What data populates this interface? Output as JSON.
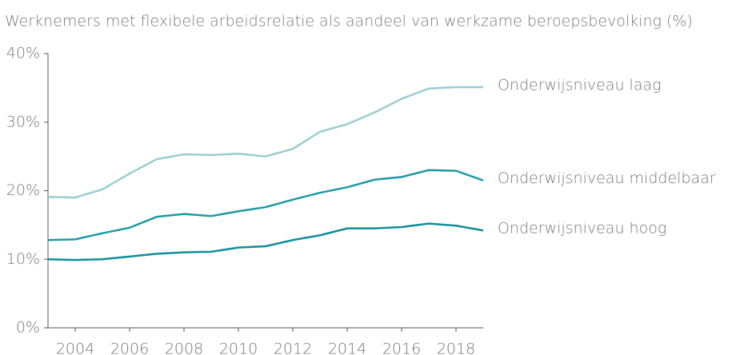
{
  "chart_data": {
    "type": "line",
    "title": "Werknemers met flexibele arbeidsrelatie als aandeel van werkzame beroepsbevolking (%)",
    "x": [
      2003,
      2004,
      2005,
      2006,
      2007,
      2008,
      2009,
      2010,
      2011,
      2012,
      2013,
      2014,
      2015,
      2016,
      2017,
      2018,
      2019
    ],
    "xlim": [
      2003,
      2019
    ],
    "xticks": [
      2004,
      2006,
      2008,
      2010,
      2012,
      2014,
      2016,
      2018
    ],
    "ylim": [
      0,
      40
    ],
    "yticks": [
      {
        "value": 0,
        "label": "0%"
      },
      {
        "value": 10,
        "label": "10%"
      },
      {
        "value": 20,
        "label": "20%"
      },
      {
        "value": 30,
        "label": "30%"
      },
      {
        "value": 40,
        "label": "40%"
      }
    ],
    "series": [
      {
        "name": "Onderwijsniveau laag",
        "color": "#98cdd2",
        "values": [
          19.1,
          19.0,
          20.2,
          22.5,
          24.6,
          25.3,
          25.2,
          25.4,
          25.0,
          26.1,
          28.6,
          29.7,
          31.4,
          33.4,
          34.9,
          35.1,
          35.1
        ]
      },
      {
        "name": "Onderwijsniveau middelbaar",
        "color": "#1b9ba6",
        "values": [
          12.8,
          12.9,
          13.8,
          14.6,
          16.2,
          16.6,
          16.3,
          17.0,
          17.6,
          18.7,
          19.7,
          20.5,
          21.6,
          22.0,
          23.0,
          22.9,
          21.5
        ]
      },
      {
        "name": "Onderwijsniveau hoog",
        "color": "#0f8e9c",
        "values": [
          10.0,
          9.9,
          10.0,
          10.4,
          10.8,
          11.0,
          11.1,
          11.7,
          11.9,
          12.8,
          13.5,
          14.5,
          14.5,
          14.7,
          15.2,
          14.9,
          14.2
        ]
      }
    ]
  }
}
